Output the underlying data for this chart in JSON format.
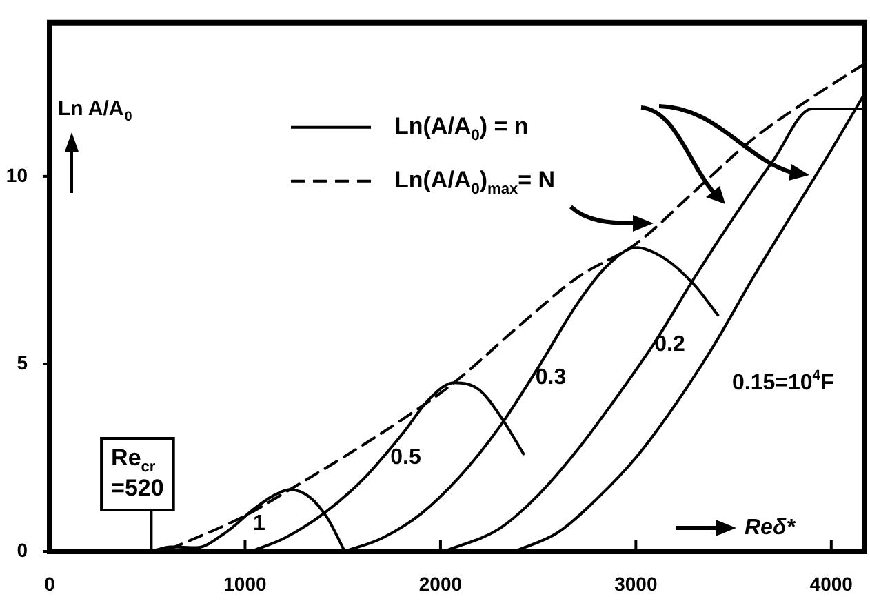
{
  "chart_data": {
    "type": "line",
    "xlabel": "Reδ*",
    "ylabel": "Ln A/A$_{0}$",
    "xlim": [
      0,
      4170
    ],
    "ylim": [
      0,
      14.1
    ],
    "xticks": [
      0,
      1000,
      2000,
      3000,
      4000
    ],
    "yticks": [
      0,
      5,
      10
    ],
    "grid": false,
    "legend": "top",
    "marker": "none",
    "series": [
      {
        "name": "Ln(A/A$_{0}$) = n",
        "color": "#000000",
        "line_style": "solid",
        "x": [
          520,
          620,
          750,
          900,
          1050,
          1150,
          1230,
          1330,
          1420,
          1510
        ],
        "values": [
          0,
          0.12,
          0.1,
          0.5,
          1.15,
          1.5,
          1.65,
          1.45,
          0.9,
          0
        ]
      },
      {
        "color": "#000000",
        "line_style": "solid",
        "x": [
          1030,
          1200,
          1400,
          1600,
          1800,
          1950,
          2070,
          2200,
          2320,
          2425
        ],
        "values": [
          0,
          0.35,
          1.0,
          1.9,
          3.1,
          4.1,
          4.5,
          4.3,
          3.5,
          2.6
        ]
      },
      {
        "color": "#000000",
        "line_style": "solid",
        "x": [
          1510,
          1700,
          1900,
          2100,
          2300,
          2500,
          2700,
          2850,
          3000,
          3150,
          3300,
          3420
        ],
        "values": [
          0,
          0.35,
          1.0,
          2.0,
          3.3,
          4.9,
          6.6,
          7.6,
          8.1,
          7.8,
          7.1,
          6.3
        ]
      },
      {
        "color": "#000000",
        "line_style": "solid",
        "x": [
          2020,
          2300,
          2500,
          2700,
          2900,
          3100,
          3300,
          3500,
          3700,
          3900,
          4170
        ],
        "values": [
          0,
          0.6,
          1.5,
          2.7,
          4.1,
          5.6,
          7.3,
          8.9,
          10.4,
          11.8,
          11.8
        ]
      },
      {
        "color": "#000000",
        "line_style": "solid",
        "x": [
          2380,
          2600,
          2800,
          3000,
          3200,
          3400,
          3600,
          3800,
          4000,
          4170
        ],
        "values": [
          0,
          0.5,
          1.4,
          2.5,
          3.9,
          5.5,
          7.3,
          9.0,
          10.7,
          12.2
        ]
      },
      {
        "name": "Ln(A/A$_{0}$)$_{max}$= N",
        "color": "#000000",
        "line_style": "dashed",
        "x": [
          610,
          1000,
          1230,
          1500,
          1800,
          2070,
          2400,
          2700,
          3000,
          3300,
          3600,
          3900,
          4170
        ],
        "values": [
          0.05,
          0.95,
          1.65,
          2.5,
          3.5,
          4.5,
          6.0,
          7.3,
          8.2,
          9.6,
          11.0,
          12.1,
          13.0
        ]
      }
    ],
    "annotations": [
      {
        "text": "Re$_{cr}$ =520",
        "x": 520,
        "y": 0
      },
      "1",
      "0.5",
      "0.3",
      "0.2",
      "0.15=10$^{4}$F"
    ]
  }
}
